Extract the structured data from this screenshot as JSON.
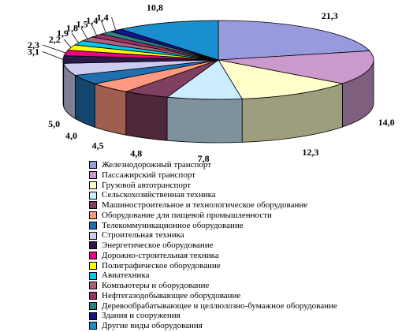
{
  "chart_data": {
    "type": "pie",
    "three_d": true,
    "legend_position": "bottom",
    "slices": [
      {
        "label": "Железнодорожный транспорт",
        "value": 21.3,
        "display": "21,3",
        "color": "#9999dd"
      },
      {
        "label": "Пассажирский транспорт",
        "value": 14.0,
        "display": "14,0",
        "color": "#cc99cc"
      },
      {
        "label": "Грузовой автотранспорт",
        "value": 12.3,
        "display": "12,3",
        "color": "#ffffcc"
      },
      {
        "label": "Сельскохозяйственная техника",
        "value": 7.8,
        "display": "7,8",
        "color": "#ccecff"
      },
      {
        "label": "Машиностроительное и технологическое оборудование",
        "value": 4.8,
        "display": "4,8",
        "color": "#7f3f5f"
      },
      {
        "label": "Оборудование для пищевой промышленности",
        "value": 4.5,
        "display": "4,5",
        "color": "#ff9980"
      },
      {
        "label": "Телекоммуникационное оборудование",
        "value": 4.0,
        "display": "4,0",
        "color": "#1f6fb0"
      },
      {
        "label": "Строительная техника",
        "value": 5.0,
        "display": "5,0",
        "color": "#ccccf0"
      },
      {
        "label": "Энергетическое оборудование",
        "value": 3.1,
        "display": "3,1",
        "color": "#2a1a4a"
      },
      {
        "label": "Дорожно-строительная техника",
        "value": 2.3,
        "display": "2,3",
        "color": "#ee0080"
      },
      {
        "label": "Полиграфическое оборудование",
        "value": 2.2,
        "display": "2,2",
        "color": "#ffff00"
      },
      {
        "label": "Авиатехника",
        "value": 1.9,
        "display": "1,9",
        "color": "#00c8f0"
      },
      {
        "label": "Компьютеры и оборудование",
        "value": 1.8,
        "display": "1,8",
        "color": "#b06080"
      },
      {
        "label": "Нефтегазодобывающее оборудование",
        "value": 1.5,
        "display": "1,5",
        "color": "#993366"
      },
      {
        "label": "Деревообрабатывающее и целлюлозно-бумажное оборудование",
        "value": 1.4,
        "display": "1,4",
        "color": "#2e7f7f"
      },
      {
        "label": "Здания и сооружения",
        "value": 1.4,
        "display": "1,4",
        "color": "#14148c"
      },
      {
        "label": "Другие виды оборудования",
        "value": 10.8,
        "display": "10,8",
        "color": "#1a8fd0"
      }
    ]
  }
}
